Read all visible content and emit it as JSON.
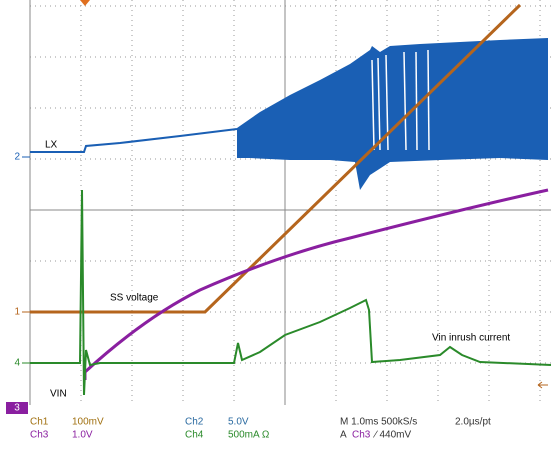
{
  "markers": {
    "ch2": "2",
    "ch1": "1",
    "ch4": "4",
    "ch3": "3"
  },
  "annotations": {
    "lx": "LX",
    "ss": "SS voltage",
    "inrush": "Vin inrush current",
    "vin": "VIN"
  },
  "footer": {
    "ch1": "Ch1",
    "ch1_scale": "100mV",
    "ch3": "Ch3",
    "ch3_scale": "1.0V",
    "ch2": "Ch2",
    "ch2_scale": "5.0V",
    "ch4": "Ch4",
    "ch4_scale": "500mA Ω",
    "timebase": "M 1.0ms 500kS/s",
    "resolution": "2.0µs/pt",
    "trigger_a": "A",
    "trigger_ch": "Ch3",
    "trigger_level": "∕ 440mV"
  }
}
